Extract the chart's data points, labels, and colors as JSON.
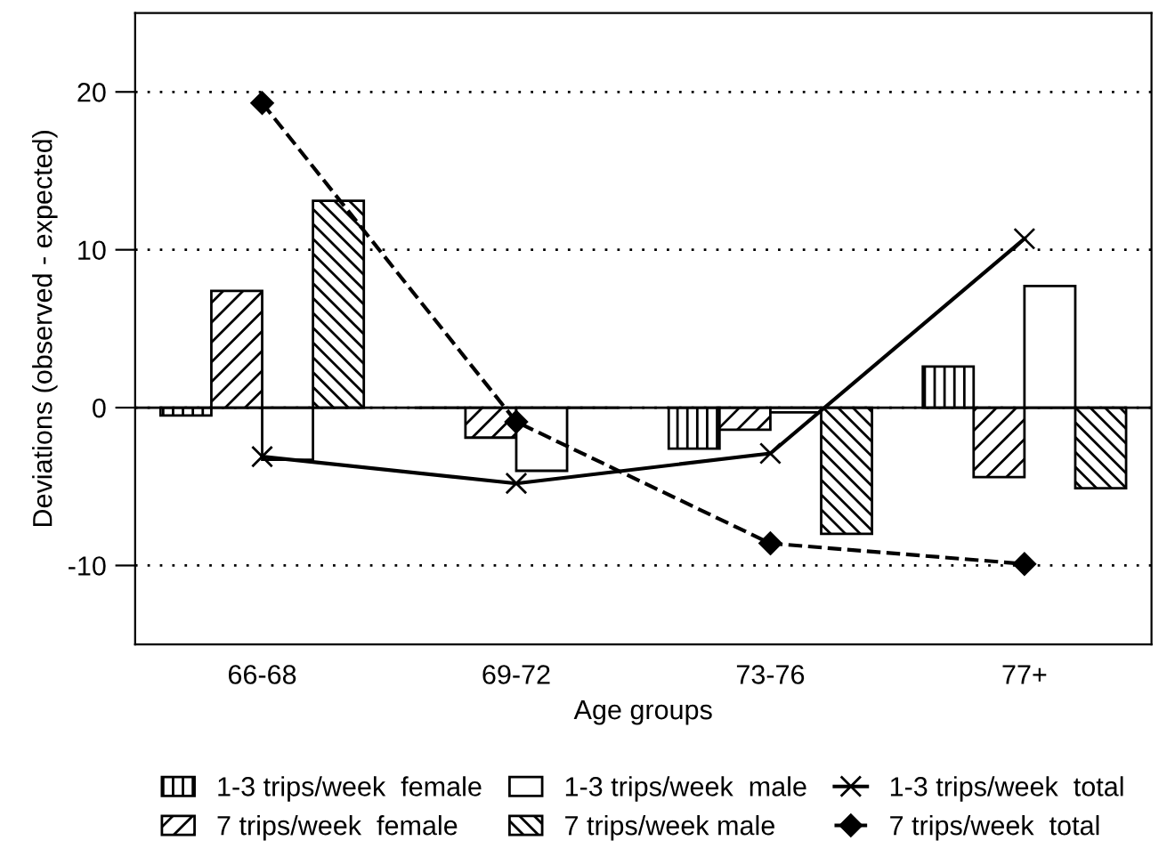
{
  "chart_data": {
    "type": "bar",
    "xlabel": "Age groups",
    "ylabel": "Deviations (observed - expected)",
    "categories": [
      "66-68",
      "69-72",
      "73-76",
      "77+"
    ],
    "series": [
      {
        "name": "1-3 trips/week  female",
        "color": "#000000",
        "values": [
          -0.5,
          0,
          -2.6,
          2.6
        ]
      },
      {
        "name": "7 trips/week  female",
        "color": "#000000",
        "values": [
          7.4,
          -1.9,
          -1.4,
          -4.4
        ]
      },
      {
        "name": "1-3 trips/week  male",
        "color": "#000000",
        "values": [
          -3.3,
          -4.0,
          -0.3,
          7.7
        ]
      },
      {
        "name": "7 trips/week male",
        "color": "#000000",
        "values": [
          13.1,
          0,
          -8.0,
          -5.1
        ]
      },
      {
        "name": "1-3 trips/week  total",
        "type": "line",
        "color": "#000000",
        "marker": "cross",
        "line_style": "solid",
        "values": [
          -3.1,
          -4.8,
          -2.9,
          10.7
        ]
      },
      {
        "name": "7 trips/week  total",
        "type": "line",
        "color": "#000000",
        "marker": "diamond",
        "line_style": "dashed",
        "values": [
          19.3,
          -0.9,
          -8.6,
          -9.9
        ]
      }
    ],
    "ylim": [
      -15,
      25
    ],
    "yticks": [
      -10,
      0,
      10,
      20
    ],
    "grid": "y",
    "legend": "bottom",
    "ref_lines": [
      {
        "axis": "y",
        "value": 0,
        "color": "#000000",
        "line_style": "solid"
      }
    ]
  }
}
